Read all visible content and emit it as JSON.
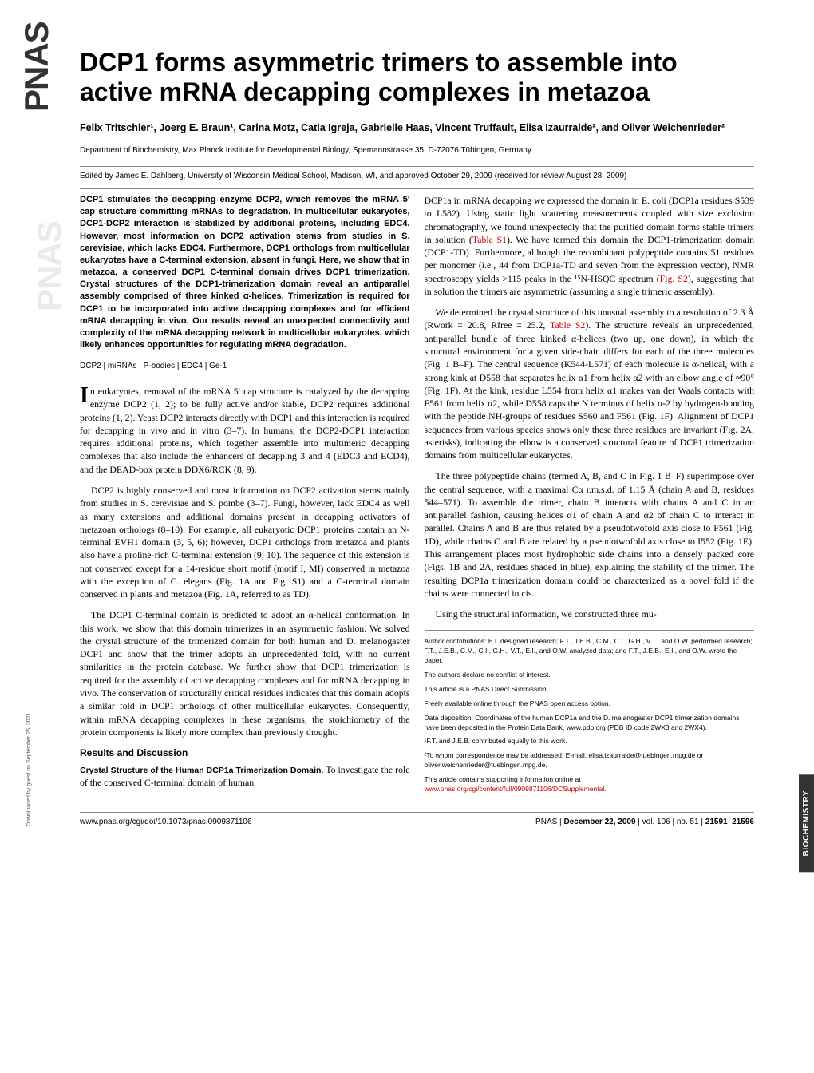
{
  "logo": "PNAS",
  "sidebar_tab": "BIOCHEMISTRY",
  "download_note": "Downloaded by guest on September 25, 2021",
  "title": "DCP1 forms asymmetric trimers to assemble into active mRNA decapping complexes in metazoa",
  "authors": "Felix Tritschler¹, Joerg E. Braun¹, Carina Motz, Catia Igreja, Gabrielle Haas, Vincent Truffault, Elisa Izaurralde², and Oliver Weichenrieder²",
  "affiliation": "Department of Biochemistry, Max Planck Institute for Developmental Biology, Spemannstrasse 35, D-72076 Tübingen, Germany",
  "edited": "Edited by James E. Dahlberg, University of Wisconsin Medical School, Madison, WI, and approved October 29, 2009 (received for review August 28, 2009)",
  "abstract": "DCP1 stimulates the decapping enzyme DCP2, which removes the mRNA 5′ cap structure committing mRNAs to degradation. In multicellular eukaryotes, DCP1-DCP2 interaction is stabilized by additional proteins, including EDC4. However, most information on DCP2 activation stems from studies in S. cerevisiae, which lacks EDC4. Furthermore, DCP1 orthologs from multicellular eukaryotes have a C-terminal extension, absent in fungi. Here, we show that in metazoa, a conserved DCP1 C-terminal domain drives DCP1 trimerization. Crystal structures of the DCP1-trimerization domain reveal an antiparallel assembly comprised of three kinked α-helices. Trimerization is required for DCP1 to be incorporated into active decapping complexes and for efficient mRNA decapping in vivo. Our results reveal an unexpected connectivity and complexity of the mRNA decapping network in multicellular eukaryotes, which likely enhances opportunities for regulating mRNA degradation.",
  "keywords": "DCP2 | miRNAs | P-bodies | EDC4 | Ge-1",
  "col1": {
    "p1": "In eukaryotes, removal of the mRNA 5′ cap structure is catalyzed by the decapping enzyme DCP2 (1, 2); to be fully active and/or stable, DCP2 requires additional proteins (1, 2). Yeast DCP2 interacts directly with DCP1 and this interaction is required for decapping in vivo and in vitro (3–7). In humans, the DCP2-DCP1 interaction requires additional proteins, which together assemble into multimeric decapping complexes that also include the enhancers of decapping 3 and 4 (EDC3 and ECD4), and the DEAD-box protein DDX6/RCK (8, 9).",
    "p2": "DCP2 is highly conserved and most information on DCP2 activation stems mainly from studies in S. cerevisiae and S. pombe (3–7). Fungi, however, lack EDC4 as well as many extensions and additional domains present in decapping activators of metazoan orthologs (8–10). For example, all eukaryotic DCP1 proteins contain an N-terminal EVH1 domain (3, 5, 6); however, DCP1 orthologs from metazoa and plants also have a proline-rich C-terminal extension (9, 10). The sequence of this extension is not conserved except for a 14-residue short motif (motif I, MI) conserved in metazoa with the exception of C. elegans (Fig. 1A and Fig. S1) and a C-terminal domain conserved in plants and metazoa (Fig. 1A, referred to as TD).",
    "p3": "The DCP1 C-terminal domain is predicted to adopt an α-helical conformation. In this work, we show that this domain trimerizes in an asymmetric fashion. We solved the crystal structure of the trimerized domain for both human and D. melanogaster DCP1 and show that the trimer adopts an unprecedented fold, with no current similarities in the protein database. We further show that DCP1 trimerization is required for the assembly of active decapping complexes and for mRNA decapping in vivo. The conservation of structurally critical residues indicates that this domain adopts a similar fold in DCP1 orthologs of other multicellular eukaryotes. Consequently, within mRNA decapping complexes in these organisms, the stoichiometry of the protein components is likely more complex than previously thought.",
    "section": "Results and Discussion",
    "subhead": "Crystal Structure of the Human DCP1a Trimerization Domain.",
    "p4": "To investigate the role of the conserved C-terminal domain of human"
  },
  "col2": {
    "p1a": "DCP1a in mRNA decapping we expressed the domain in E. coli (DCP1a residues S539 to L582). Using static light scattering measurements coupled with size exclusion chromatography, we found unexpectedly that the purified domain forms stable trimers in solution (",
    "p1link1": "Table S1",
    "p1b": "). We have termed this domain the DCP1-trimerization domain (DCP1-TD). Furthermore, although the recombinant polypeptide contains 51 residues per monomer (i.e., 44 from DCP1a-TD and seven from the expression vector), NMR spectroscopy yields >115 peaks in the ¹⁵N-HSQC spectrum (",
    "p1link2": "Fig. S2",
    "p1c": "), suggesting that in solution the trimers are asymmetric (assuming a single trimeric assembly).",
    "p2a": "We determined the crystal structure of this unusual assembly to a resolution of 2.3 Å (Rwork = 20.8, Rfree = 25.2, ",
    "p2link": "Table S2",
    "p2b": "). The structure reveals an unprecedented, antiparallel bundle of three kinked α-helices (two up, one down), in which the structural environment for a given side-chain differs for each of the three molecules (Fig. 1 B–F). The central sequence (K544-L571) of each molecule is α-helical, with a strong kink at D558 that separates helix α1 from helix α2 with an elbow angle of ≈90° (Fig. 1F). At the kink, residue L554 from helix α1 makes van der Waals contacts with F561 from helix α2, while D558 caps the N terminus of helix α-2 by hydrogen-bonding with the peptide NH-groups of residues S560 and F561 (Fig. 1F). Alignment of DCP1 sequences from various species shows only these three residues are invariant (Fig. 2A, asterisks), indicating the elbow is a conserved structural feature of DCP1 trimerization domains from multicellular eukaryotes.",
    "p3": "The three polypeptide chains (termed A, B, and C in Fig. 1 B–F) superimpose over the central sequence, with a maximal Cα r.m.s.d. of 1.15 Å (chain A and B, residues 544–571). To assemble the trimer, chain B interacts with chains A and C in an antiparallel fashion, causing helices α1 of chain A and α2 of chain C to interact in parallel. Chains A and B are thus related by a pseudotwofold axis close to F561 (Fig. 1D), while chains C and B are related by a pseudotwofold axis close to I552 (Fig. 1E). This arrangement places most hydrophobic side chains into a densely packed core (Figs. 1B and 2A, residues shaded in blue), explaining the stability of the trimer. The resulting DCP1a trimerization domain could be characterized as a novel fold if the chains were connected in cis.",
    "p4": "Using the structural information, we constructed three mu-"
  },
  "footnotes": {
    "f1": "Author contributions: E.I. designed research; F.T., J.E.B., C.M., C.I., G.H., V.T., and O.W. performed research; F.T., J.E.B., C.M., C.I., G.H., V.T., E.I., and O.W. analyzed data; and F.T., J.E.B., E.I., and O.W. wrote the paper.",
    "f2": "The authors declare no conflict of interest.",
    "f3": "This article is a PNAS Direct Submission.",
    "f4": "Freely available online through the PNAS open access option.",
    "f5": "Data deposition: Coordinates of the human DCP1a and the D. melanogaster DCP1 trimerization domains have been deposited in the Protein Data Bank, www.pdb.org (PDB ID code 2WX3 and 2WX4).",
    "f6": "¹F.T. and J.E.B. contributed equally to this work.",
    "f7": "²To whom correspondence may be addressed. E-mail: elisa.izaurralde@tuebingen.mpg.de or oliver.weichenrieder@tuebingen.mpg.de.",
    "f8a": "This article contains supporting information online at ",
    "f8link": "www.pnas.org/cgi/content/full/0909871106/DCSupplemental",
    "f8b": "."
  },
  "footer": {
    "left": "www.pnas.org/cgi/doi/10.1073/pnas.0909871106",
    "right_a": "PNAS  |  ",
    "right_b": "December 22, 2009",
    "right_c": "  |  vol. 106  |  no. 51  |  ",
    "right_d": "21591–21596"
  },
  "colors": {
    "link": "#cc0000",
    "text": "#000000",
    "rule": "#888888",
    "bg": "#ffffff"
  },
  "fonts": {
    "title_size": 32,
    "body_size": 11.8,
    "footnote_size": 8.5
  }
}
